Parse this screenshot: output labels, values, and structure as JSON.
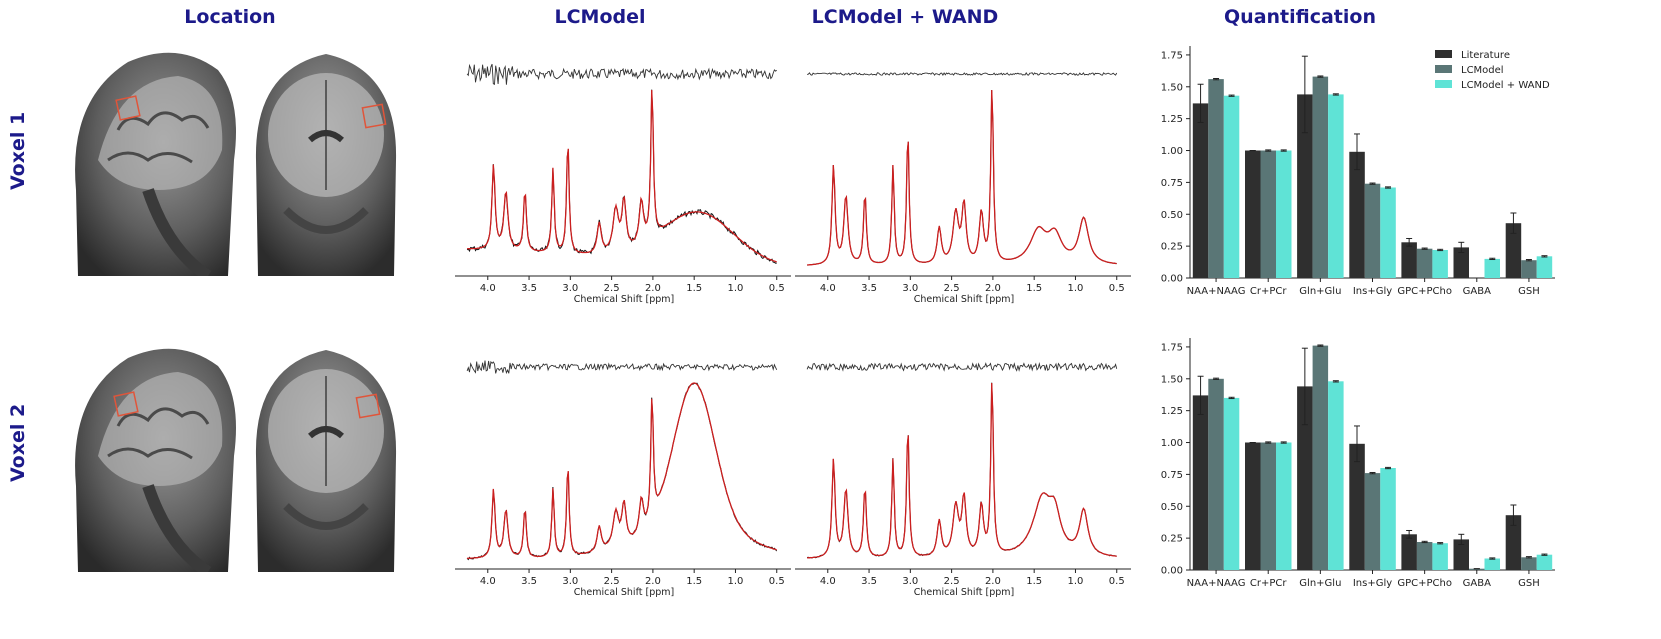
{
  "column_titles": {
    "location": "Location",
    "lcmodel": "LCModel",
    "lcmodel_wand": "LCModel + WAND",
    "quantification": "Quantification"
  },
  "row_labels": [
    "Voxel 1",
    "Voxel 2"
  ],
  "colors": {
    "title": "#1c1a8a",
    "literature": "#2f2f2f",
    "lcmodel": "#5a7676",
    "wand": "#5fe3d6",
    "fit": "#cc1f1f",
    "data": "#111111",
    "voxel_box": "#e0553a"
  },
  "spectra": {
    "xlabel": "Chemical Shift [ppm]",
    "x_range": [
      4.3,
      0.4
    ],
    "xticks": [
      4.0,
      3.5,
      3.0,
      2.5,
      2.0,
      1.5,
      1.0,
      0.5
    ],
    "tick_labels": [
      "4.0",
      "3.5",
      "3.0",
      "2.5",
      "2.0",
      "1.5",
      "1.0",
      "0.5"
    ]
  },
  "chart_data": [
    {
      "type": "bar",
      "title": "Quantification",
      "row": "Voxel 1",
      "categories": [
        "NAA+NAAG",
        "Cr+PCr",
        "Gln+Glu",
        "Ins+Gly",
        "GPC+PCho",
        "GABA",
        "GSH"
      ],
      "series": [
        {
          "name": "Literature",
          "values": [
            1.37,
            1.0,
            1.44,
            0.99,
            0.28,
            0.24,
            0.43
          ],
          "errors": [
            0.15,
            0.0,
            0.3,
            0.14,
            0.03,
            0.04,
            0.08
          ]
        },
        {
          "name": "LCModel",
          "values": [
            1.56,
            1.0,
            1.58,
            0.74,
            0.23,
            0.0,
            0.14
          ],
          "errors": [
            0.005,
            0.005,
            0.005,
            0.005,
            0.005,
            0.0,
            0.005
          ]
        },
        {
          "name": "LCModel + WAND",
          "values": [
            1.43,
            1.0,
            1.44,
            0.71,
            0.22,
            0.15,
            0.17
          ],
          "errors": [
            0.005,
            0.005,
            0.005,
            0.005,
            0.005,
            0.005,
            0.005
          ]
        }
      ],
      "ylim": [
        0,
        1.82
      ],
      "yticks": [
        0.0,
        0.25,
        0.5,
        0.75,
        1.0,
        1.25,
        1.5,
        1.75
      ],
      "ytick_labels": [
        "0.00",
        "0.25",
        "0.50",
        "0.75",
        "1.00",
        "1.25",
        "1.50",
        "1.75"
      ],
      "legend": "top-right"
    },
    {
      "type": "bar",
      "title": "Quantification",
      "row": "Voxel 2",
      "categories": [
        "NAA+NAAG",
        "Cr+PCr",
        "Gln+Glu",
        "Ins+Gly",
        "GPC+PCho",
        "GABA",
        "GSH"
      ],
      "series": [
        {
          "name": "Literature",
          "values": [
            1.37,
            1.0,
            1.44,
            0.99,
            0.28,
            0.24,
            0.43
          ],
          "errors": [
            0.15,
            0.0,
            0.3,
            0.14,
            0.03,
            0.04,
            0.08
          ]
        },
        {
          "name": "LCModel",
          "values": [
            1.5,
            1.0,
            1.76,
            0.76,
            0.22,
            0.01,
            0.1
          ],
          "errors": [
            0.005,
            0.005,
            0.005,
            0.005,
            0.005,
            0.0,
            0.005
          ]
        },
        {
          "name": "LCModel + WAND",
          "values": [
            1.35,
            1.0,
            1.48,
            0.8,
            0.21,
            0.09,
            0.12
          ],
          "errors": [
            0.005,
            0.005,
            0.005,
            0.005,
            0.005,
            0.005,
            0.005
          ]
        }
      ],
      "ylim": [
        0,
        1.82
      ],
      "yticks": [
        0.0,
        0.25,
        0.5,
        0.75,
        1.0,
        1.25,
        1.5,
        1.75
      ],
      "ytick_labels": [
        "0.00",
        "0.25",
        "0.50",
        "0.75",
        "1.00",
        "1.25",
        "1.50",
        "1.75"
      ],
      "legend": "none"
    }
  ]
}
